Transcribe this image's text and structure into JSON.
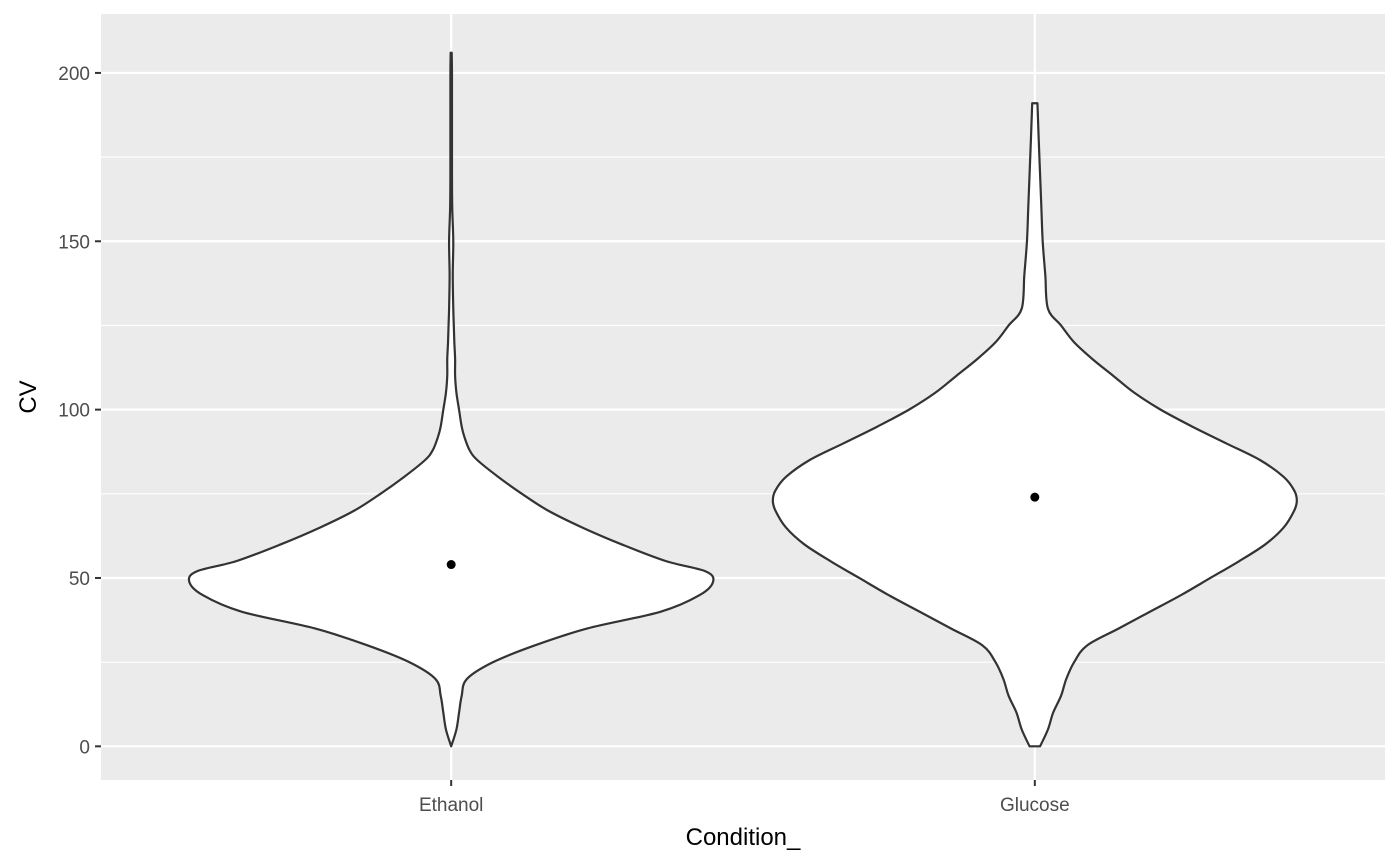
{
  "chart_data": {
    "type": "violin",
    "title": "",
    "xlabel": "Condition_",
    "ylabel": "CV",
    "ylim": [
      -10,
      217.5
    ],
    "yticks": [
      0,
      50,
      100,
      150,
      200
    ],
    "categories": [
      "Ethanol",
      "Glucose"
    ],
    "grid": true,
    "legend": "none",
    "colors": {
      "panel_background": "#ebebeb",
      "grid": "#ffffff",
      "violin_fill": "#ffffff",
      "violin_outline": "#333333",
      "point": "#000000"
    },
    "violins": [
      {
        "category": "Ethanol",
        "point_value": 54,
        "density_profile": [
          [
            0,
            0.0
          ],
          [
            5,
            0.02
          ],
          [
            10,
            0.03
          ],
          [
            15,
            0.04
          ],
          [
            20,
            0.06
          ],
          [
            25,
            0.16
          ],
          [
            30,
            0.32
          ],
          [
            35,
            0.52
          ],
          [
            40,
            0.8
          ],
          [
            45,
            0.95
          ],
          [
            49,
            1.0
          ],
          [
            52,
            0.97
          ],
          [
            55,
            0.82
          ],
          [
            60,
            0.65
          ],
          [
            65,
            0.5
          ],
          [
            70,
            0.37
          ],
          [
            75,
            0.27
          ],
          [
            80,
            0.18
          ],
          [
            85,
            0.1
          ],
          [
            88,
            0.07
          ],
          [
            92,
            0.05
          ],
          [
            95,
            0.04
          ],
          [
            100,
            0.03
          ],
          [
            105,
            0.02
          ],
          [
            110,
            0.015
          ],
          [
            115,
            0.015
          ],
          [
            120,
            0.012
          ],
          [
            125,
            0.01
          ],
          [
            130,
            0.008
          ],
          [
            140,
            0.006
          ],
          [
            150,
            0.008
          ],
          [
            160,
            0.004
          ],
          [
            170,
            0.003
          ],
          [
            180,
            0.003
          ],
          [
            190,
            0.003
          ],
          [
            200,
            0.003
          ],
          [
            206,
            0.002
          ]
        ]
      },
      {
        "category": "Glucose",
        "point_value": 74,
        "density_profile": [
          [
            0,
            0.02
          ],
          [
            5,
            0.05
          ],
          [
            10,
            0.07
          ],
          [
            15,
            0.1
          ],
          [
            20,
            0.12
          ],
          [
            25,
            0.15
          ],
          [
            30,
            0.2
          ],
          [
            35,
            0.32
          ],
          [
            40,
            0.44
          ],
          [
            45,
            0.56
          ],
          [
            50,
            0.67
          ],
          [
            55,
            0.78
          ],
          [
            60,
            0.88
          ],
          [
            65,
            0.95
          ],
          [
            70,
            0.99
          ],
          [
            73,
            1.0
          ],
          [
            76,
            0.99
          ],
          [
            80,
            0.95
          ],
          [
            85,
            0.86
          ],
          [
            90,
            0.73
          ],
          [
            95,
            0.6
          ],
          [
            100,
            0.48
          ],
          [
            105,
            0.38
          ],
          [
            110,
            0.3
          ],
          [
            115,
            0.22
          ],
          [
            120,
            0.15
          ],
          [
            125,
            0.1
          ],
          [
            130,
            0.05
          ],
          [
            140,
            0.04
          ],
          [
            150,
            0.03
          ],
          [
            160,
            0.025
          ],
          [
            170,
            0.02
          ],
          [
            180,
            0.015
          ],
          [
            191,
            0.01
          ]
        ]
      }
    ]
  }
}
